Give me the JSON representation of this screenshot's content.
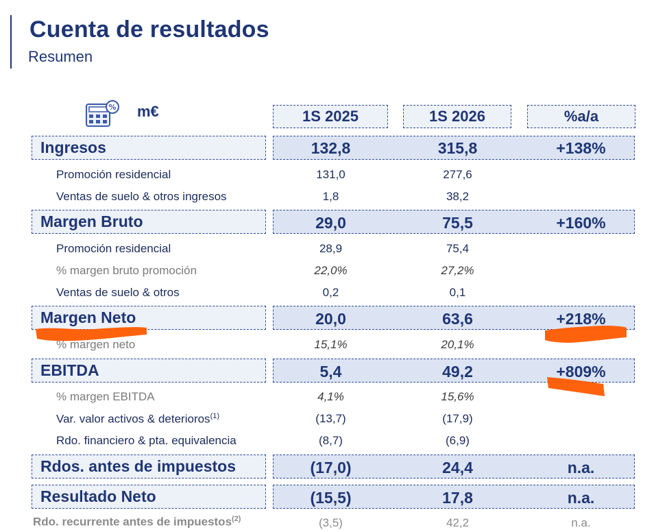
{
  "header": {
    "title": "Cuenta de resultados",
    "subtitle": "Resumen",
    "unit": "m€"
  },
  "columns": [
    "1S 2025",
    "1S 2026",
    "%a/a"
  ],
  "ingresos": {
    "label": "Ingresos",
    "v1": "132,8",
    "v2": "315,8",
    "pct": "+138%"
  },
  "ing_sub": [
    {
      "label": "Promoción residencial",
      "v1": "131,0",
      "v2": "277,6"
    },
    {
      "label": "Ventas de suelo & otros ingresos",
      "v1": "1,8",
      "v2": "38,2"
    }
  ],
  "margen_bruto": {
    "label": "Margen Bruto",
    "v1": "29,0",
    "v2": "75,5",
    "pct": "+160%"
  },
  "mb_sub": [
    {
      "label": "Promoción residencial",
      "v1": "28,9",
      "v2": "75,4"
    },
    {
      "label": "% margen bruto promoción",
      "v1": "22,0%",
      "v2": "27,2%"
    },
    {
      "label": "Ventas de suelo & otros",
      "v1": "0,2",
      "v2": "0,1"
    }
  ],
  "margen_neto": {
    "label": "Margen Neto",
    "v1": "20,0",
    "v2": "63,6",
    "pct": "+218%"
  },
  "mn_sub": [
    {
      "label": "% margen neto",
      "v1": "15,1%",
      "v2": "20,1%"
    }
  ],
  "ebitda": {
    "label": "EBITDA",
    "v1": "5,4",
    "v2": "49,2",
    "pct": "+809%"
  },
  "eb_sub": [
    {
      "label": "% margen EBITDA",
      "v1": "4,1%",
      "v2": "15,6%"
    },
    {
      "label": "Var. valor activos & deterioros",
      "sup": "(1)",
      "v1": "(13,7)",
      "v2": "(17,9)"
    },
    {
      "label": "Rdo. financiero & pta. equivalencia",
      "v1": "(8,7)",
      "v2": "(6,9)"
    }
  ],
  "rai": {
    "label": "Rdos. antes de impuestos",
    "v1": "(17,0)",
    "v2": "24,4",
    "pct": "n.a."
  },
  "neto": {
    "label": "Resultado Neto",
    "v1": "(15,5)",
    "v2": "17,8",
    "pct": "n.a."
  },
  "recurrente": {
    "label": "Rdo. recurrente antes de impuestos",
    "sup": "(2)",
    "v1": "(3,5)",
    "v2": "42,2",
    "pct": "n.a."
  },
  "colors": {
    "navy": "#1f3675",
    "box_fill": "#dce4f3",
    "label_fill": "#edf1f8",
    "highlight": "#ff5a00"
  },
  "icons": {
    "calculator": "calculator-percent-icon"
  }
}
